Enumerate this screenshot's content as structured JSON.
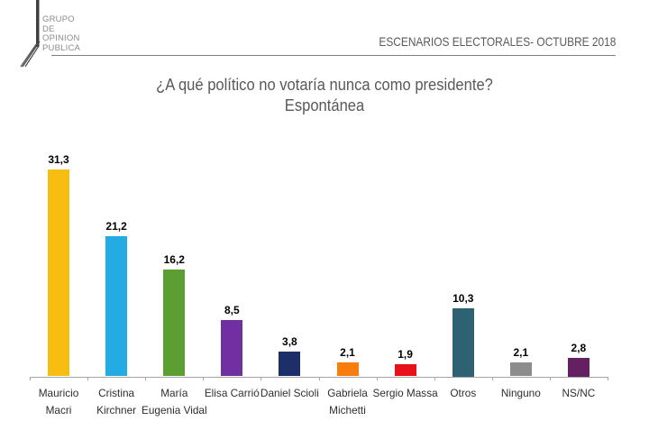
{
  "logo": {
    "lines": [
      "GRUPO",
      "DE",
      "OPINION",
      "PUBLICA"
    ]
  },
  "header": {
    "title": "ESCENARIOS ELECTORALES- OCTUBRE 2018"
  },
  "chart_data": {
    "type": "bar",
    "title": "¿A qué político no votaría nunca como presidente?",
    "subtitle": "Espontánea",
    "categories": [
      [
        "Mauricio",
        "Macri"
      ],
      [
        "Cristina",
        "Kirchner"
      ],
      [
        "María",
        "Eugenia Vidal"
      ],
      [
        "Elisa Carrió"
      ],
      [
        "Daniel Scioli"
      ],
      [
        "Gabriela",
        "Michetti"
      ],
      [
        "Sergio Massa"
      ],
      [
        "Otros"
      ],
      [
        "Ninguno"
      ],
      [
        "NS/NC"
      ]
    ],
    "values": [
      31.3,
      21.2,
      16.2,
      8.5,
      3.8,
      2.1,
      1.9,
      10.3,
      2.1,
      2.8
    ],
    "value_labels": [
      "31,3",
      "21,2",
      "16,2",
      "8,5",
      "3,8",
      "2,1",
      "1,9",
      "10,3",
      "2,1",
      "2,8"
    ],
    "colors": [
      "#F7BD11",
      "#22ACE3",
      "#5B9F33",
      "#7030A0",
      "#1C2F69",
      "#F97D0D",
      "#E8111A",
      "#2E6272",
      "#8C8C8C",
      "#632063"
    ],
    "xlabel": "",
    "ylabel": "",
    "ylim": [
      0,
      35
    ],
    "grid": false,
    "legend": false
  }
}
